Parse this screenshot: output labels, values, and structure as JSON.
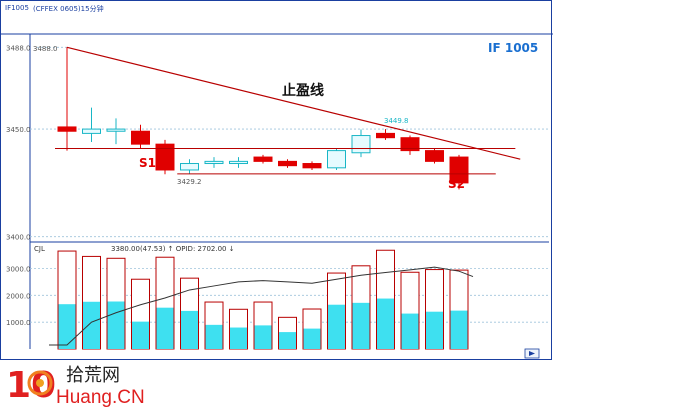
{
  "header": {
    "symbol": "IF1005",
    "subtitle": "(CFFEX 0605)15分钟",
    "instrument_label": "IF  1005"
  },
  "annotations": {
    "stop_profit_line": "止盈线",
    "s1": "S1",
    "s2": "S2",
    "low_label": "3429.2",
    "high_label": "3449.8",
    "top_label": "3488.0"
  },
  "volume_header": {
    "name": "CJL",
    "values": "3380.00(47.53)  ↑  OPID: 2702.00  ↓"
  },
  "colors": {
    "up": "#e00000",
    "down_fill": "#e6fbff",
    "down_stroke": "#18b6c6",
    "trend": "#b80000",
    "support": "#b80000",
    "vol_cyan": "#3ee0f0",
    "vol_outline": "#b80000",
    "grid": "#9fc4dc",
    "frame": "#1a3fa0"
  },
  "watermark": {
    "logo_digits": "10",
    "site_cn": "拾荒网",
    "site_en": "Huang.CN"
  },
  "chart_data": [
    {
      "type": "candlestick",
      "title": "IF  1005",
      "y_ticks": [
        3400,
        3450,
        3488
      ],
      "ylim": [
        3398,
        3490
      ],
      "grid": true,
      "candles": [
        {
          "open": 3449,
          "close": 3451,
          "high": 3488,
          "low": 3440,
          "dir": "red"
        },
        {
          "open": 3450,
          "close": 3448,
          "high": 3460,
          "low": 3444,
          "dir": "cyan"
        },
        {
          "open": 3450,
          "close": 3449,
          "high": 3455,
          "low": 3443,
          "dir": "cyan"
        },
        {
          "open": 3443,
          "close": 3449,
          "high": 3452,
          "low": 3441,
          "dir": "red"
        },
        {
          "open": 3431,
          "close": 3443,
          "high": 3445,
          "low": 3429,
          "dir": "red"
        },
        {
          "open": 3434,
          "close": 3431,
          "high": 3436,
          "low": 3429.2,
          "dir": "cyan"
        },
        {
          "open": 3435,
          "close": 3434,
          "high": 3437,
          "low": 3432,
          "dir": "cyan"
        },
        {
          "open": 3435,
          "close": 3434,
          "high": 3437,
          "low": 3432,
          "dir": "cyan"
        },
        {
          "open": 3435,
          "close": 3437,
          "high": 3438,
          "low": 3434,
          "dir": "red"
        },
        {
          "open": 3433,
          "close": 3435,
          "high": 3436,
          "low": 3432,
          "dir": "red"
        },
        {
          "open": 3432,
          "close": 3434,
          "high": 3435,
          "low": 3431,
          "dir": "red"
        },
        {
          "open": 3440,
          "close": 3432,
          "high": 3441,
          "low": 3431,
          "dir": "cyan"
        },
        {
          "open": 3447,
          "close": 3439,
          "high": 3449.8,
          "low": 3437,
          "dir": "cyan"
        },
        {
          "open": 3446,
          "close": 3448,
          "high": 3450,
          "low": 3445,
          "dir": "red"
        },
        {
          "open": 3440,
          "close": 3446,
          "high": 3447,
          "low": 3438,
          "dir": "red"
        },
        {
          "open": 3435,
          "close": 3440,
          "high": 3441,
          "low": 3434,
          "dir": "red"
        },
        {
          "open": 3425,
          "close": 3437,
          "high": 3438,
          "low": 3422,
          "dir": "red"
        }
      ],
      "trend_line": {
        "label": "止盈线",
        "from": [
          0,
          3488
        ],
        "to": [
          18.5,
          3436
        ]
      },
      "support_line": {
        "value": 3441,
        "from": 0,
        "to": 18.3
      },
      "support_line_2": {
        "value": 3429.2,
        "from": 4.5,
        "to": 17.5
      }
    },
    {
      "type": "bar",
      "name": "CJL",
      "y_ticks": [
        1000,
        2000,
        3000
      ],
      "ylim": [
        0,
        3950
      ],
      "grid": true,
      "total": [
        3650,
        3450,
        3380,
        2600,
        3420,
        2640,
        1750,
        1480,
        1750,
        1180,
        1490,
        2830,
        3100,
        3680,
        2860,
        2960,
        2940
      ],
      "inner": [
        1670,
        1760,
        1770,
        1020,
        1540,
        1420,
        900,
        800,
        880,
        630,
        760,
        1650,
        1720,
        1880,
        1320,
        1390,
        1430
      ],
      "opid_line": [
        150,
        1000,
        1350,
        1650,
        1900,
        2200,
        2350,
        2500,
        2550,
        2500,
        2450,
        2600,
        2750,
        2850,
        2950,
        3050,
        2900
      ]
    }
  ]
}
